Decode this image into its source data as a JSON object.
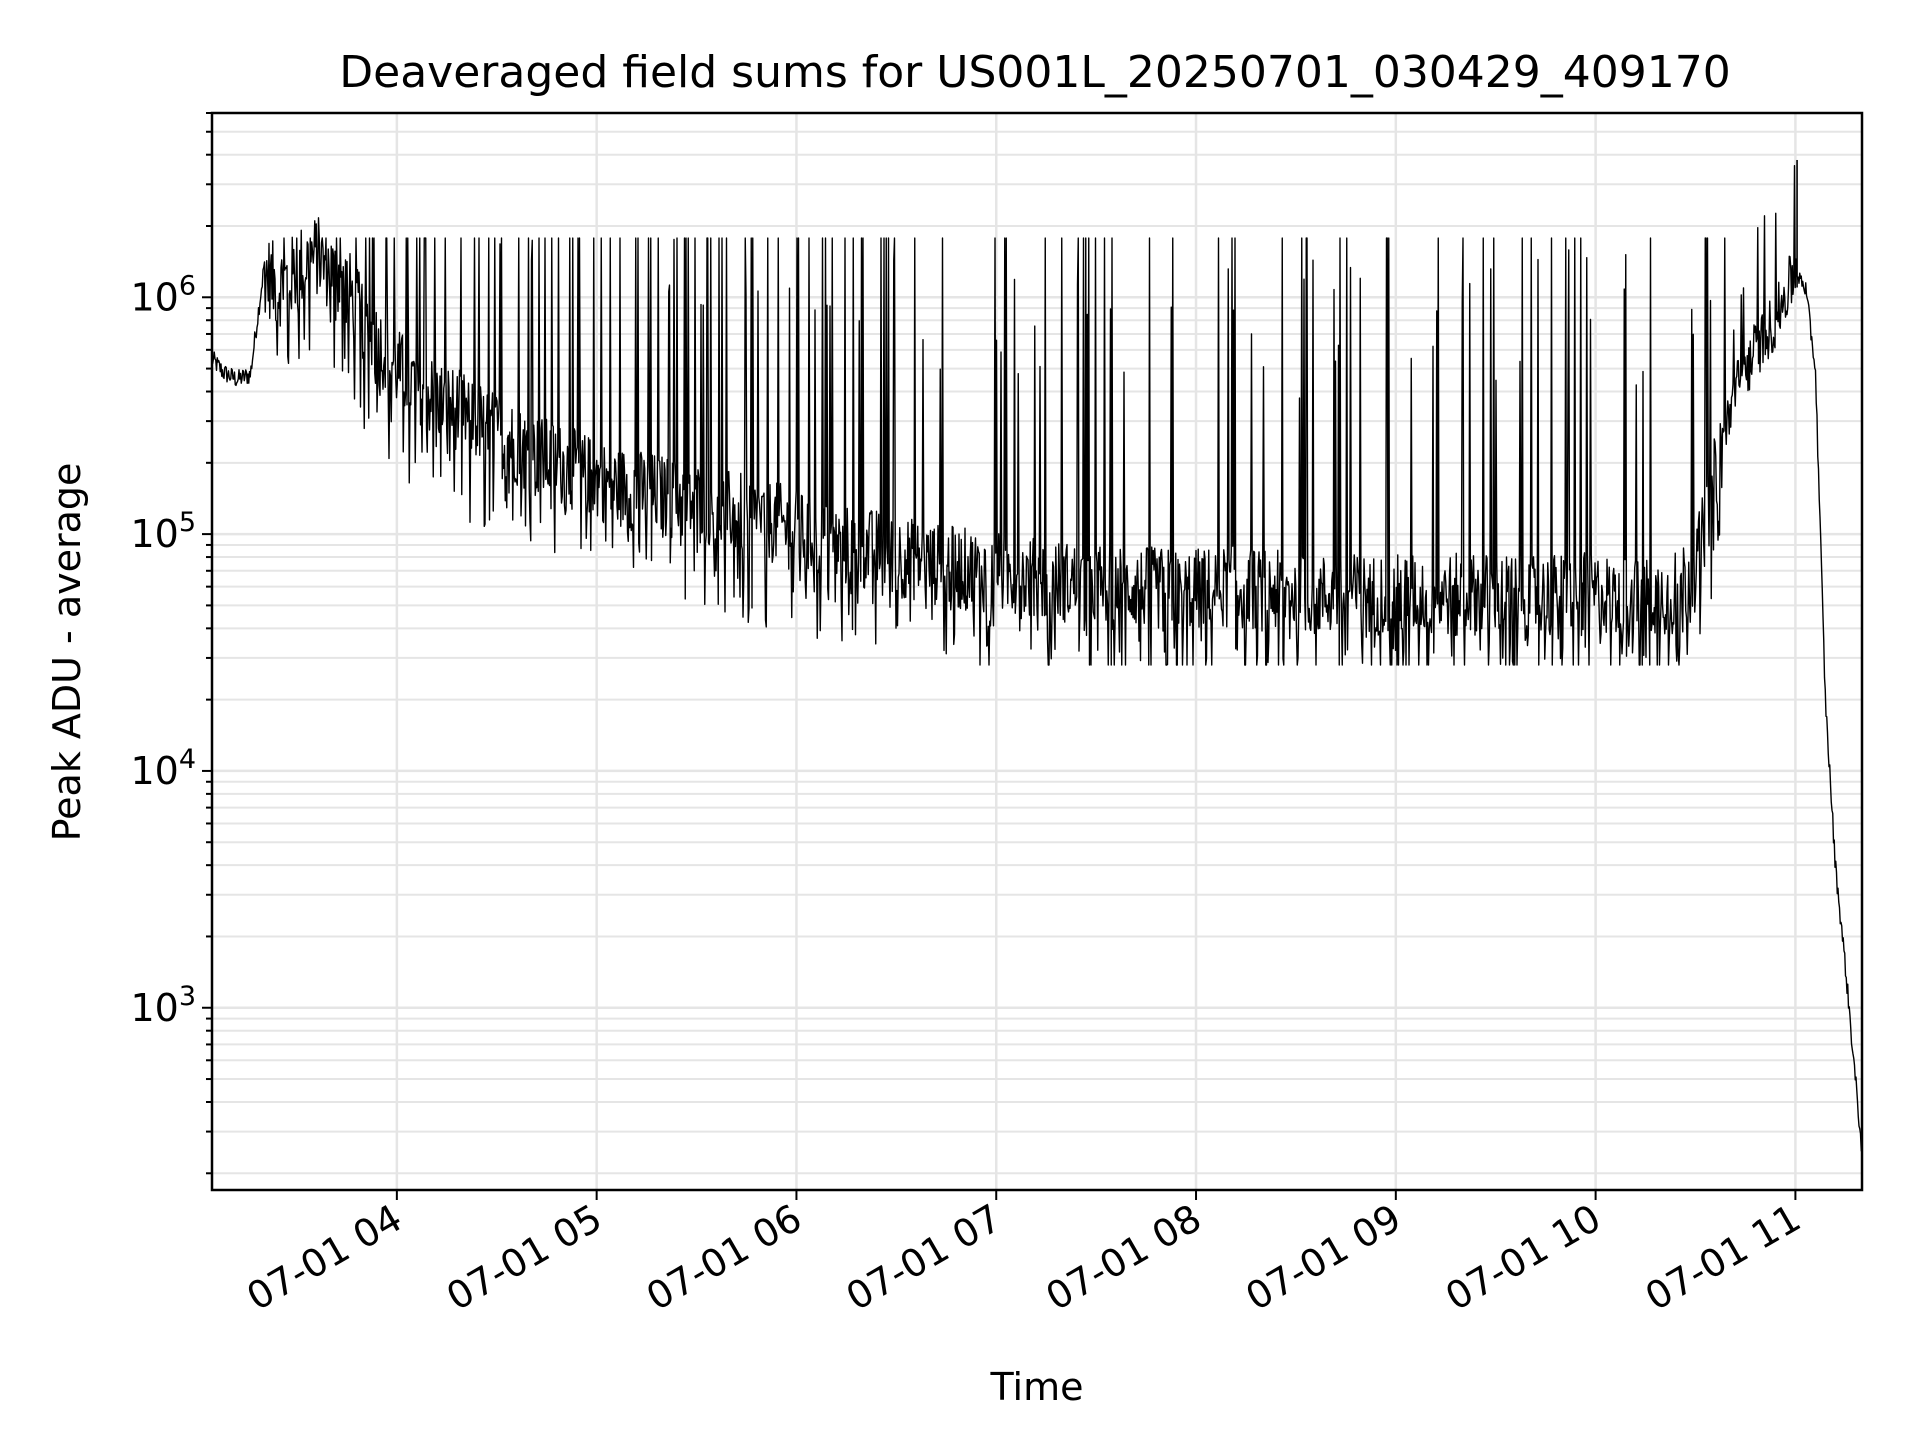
{
  "chart_data": {
    "type": "line",
    "title": "Deaveraged field sums for US001L_20250701_030429_409170",
    "xlabel": "Time",
    "ylabel": "Peak ADU - average",
    "yscale": "log",
    "ylim": [
      170,
      6000000
    ],
    "xlim": [
      "2025-07-01 03:04:29",
      "2025-07-01 11:20:00"
    ],
    "grid": true,
    "line_color": "#000000",
    "grid_color": "#e5e5e5",
    "x_ticks": [
      {
        "value": "2025-07-01 04:00",
        "label": "07-01 04"
      },
      {
        "value": "2025-07-01 05:00",
        "label": "07-01 05"
      },
      {
        "value": "2025-07-01 06:00",
        "label": "07-01 06"
      },
      {
        "value": "2025-07-01 07:00",
        "label": "07-01 07"
      },
      {
        "value": "2025-07-01 08:00",
        "label": "07-01 08"
      },
      {
        "value": "2025-07-01 09:00",
        "label": "07-01 09"
      },
      {
        "value": "2025-07-01 10:00",
        "label": "07-01 10"
      },
      {
        "value": "2025-07-01 11:00",
        "label": "07-01 11"
      }
    ],
    "y_ticks": [
      {
        "value": 1000,
        "base": "10",
        "exponent": "3"
      },
      {
        "value": 10000,
        "base": "10",
        "exponent": "4"
      },
      {
        "value": 100000,
        "base": "10",
        "exponent": "5"
      },
      {
        "value": 1000000,
        "base": "10",
        "exponent": "6"
      }
    ],
    "x": [
      "2025-07-01 03:04:29",
      "2025-07-01 03:08",
      "2025-07-01 03:12",
      "2025-07-01 03:16",
      "2025-07-01 03:20",
      "2025-07-01 03:24",
      "2025-07-01 03:28",
      "2025-07-01 03:32",
      "2025-07-01 03:36",
      "2025-07-01 03:40",
      "2025-07-01 03:44",
      "2025-07-01 03:48",
      "2025-07-01 03:52",
      "2025-07-01 03:56",
      "2025-07-01 04:00",
      "2025-07-01 04:08",
      "2025-07-01 04:16",
      "2025-07-01 04:24",
      "2025-07-01 04:32",
      "2025-07-01 04:40",
      "2025-07-01 04:48",
      "2025-07-01 04:56",
      "2025-07-01 05:05",
      "2025-07-01 05:15",
      "2025-07-01 05:25",
      "2025-07-01 05:35",
      "2025-07-01 05:45",
      "2025-07-01 05:55",
      "2025-07-01 06:10",
      "2025-07-01 06:25",
      "2025-07-01 06:40",
      "2025-07-01 06:55",
      "2025-07-01 07:10",
      "2025-07-01 07:25",
      "2025-07-01 07:40",
      "2025-07-01 07:55",
      "2025-07-01 08:10",
      "2025-07-01 08:25",
      "2025-07-01 08:40",
      "2025-07-01 08:55",
      "2025-07-01 09:10",
      "2025-07-01 09:25",
      "2025-07-01 09:40",
      "2025-07-01 09:55",
      "2025-07-01 10:10",
      "2025-07-01 10:20",
      "2025-07-01 10:30",
      "2025-07-01 10:36",
      "2025-07-01 10:42",
      "2025-07-01 10:48",
      "2025-07-01 10:54",
      "2025-07-01 11:00",
      "2025-07-01 11:03",
      "2025-07-01 11:06",
      "2025-07-01 11:09",
      "2025-07-01 11:12",
      "2025-07-01 11:15",
      "2025-07-01 11:18",
      "2025-07-01 11:20"
    ],
    "y": [
      550000,
      480000,
      450000,
      470000,
      1300000,
      1100000,
      1200000,
      1400000,
      1500000,
      1300000,
      1200000,
      900000,
      700000,
      600000,
      500000,
      400000,
      350000,
      300000,
      260000,
      220000,
      200000,
      180000,
      160000,
      150000,
      140000,
      130000,
      120000,
      110000,
      90000,
      85000,
      75000,
      70000,
      65000,
      62000,
      60000,
      58000,
      60000,
      57000,
      55000,
      56000,
      55000,
      56000,
      55000,
      56000,
      55000,
      55000,
      70000,
      180000,
      400000,
      600000,
      800000,
      1300000,
      1100000,
      500000,
      20000,
      4000,
      1500,
      500,
      250
    ],
    "spike_tops": [
      1900000,
      1800000,
      1700000,
      1500000,
      1200000,
      1100000,
      1000000,
      1000000,
      1000000,
      1000000,
      1000000,
      1000000,
      1000000,
      1200000,
      1000000,
      1000000,
      1500000,
      1800000,
      2000000,
      3800000
    ],
    "spike_bottoms": [
      40000,
      50000,
      35000,
      30000,
      32000,
      35000,
      38000,
      30000,
      28000,
      30000,
      32000,
      30000,
      33000,
      35000,
      32000
    ]
  }
}
